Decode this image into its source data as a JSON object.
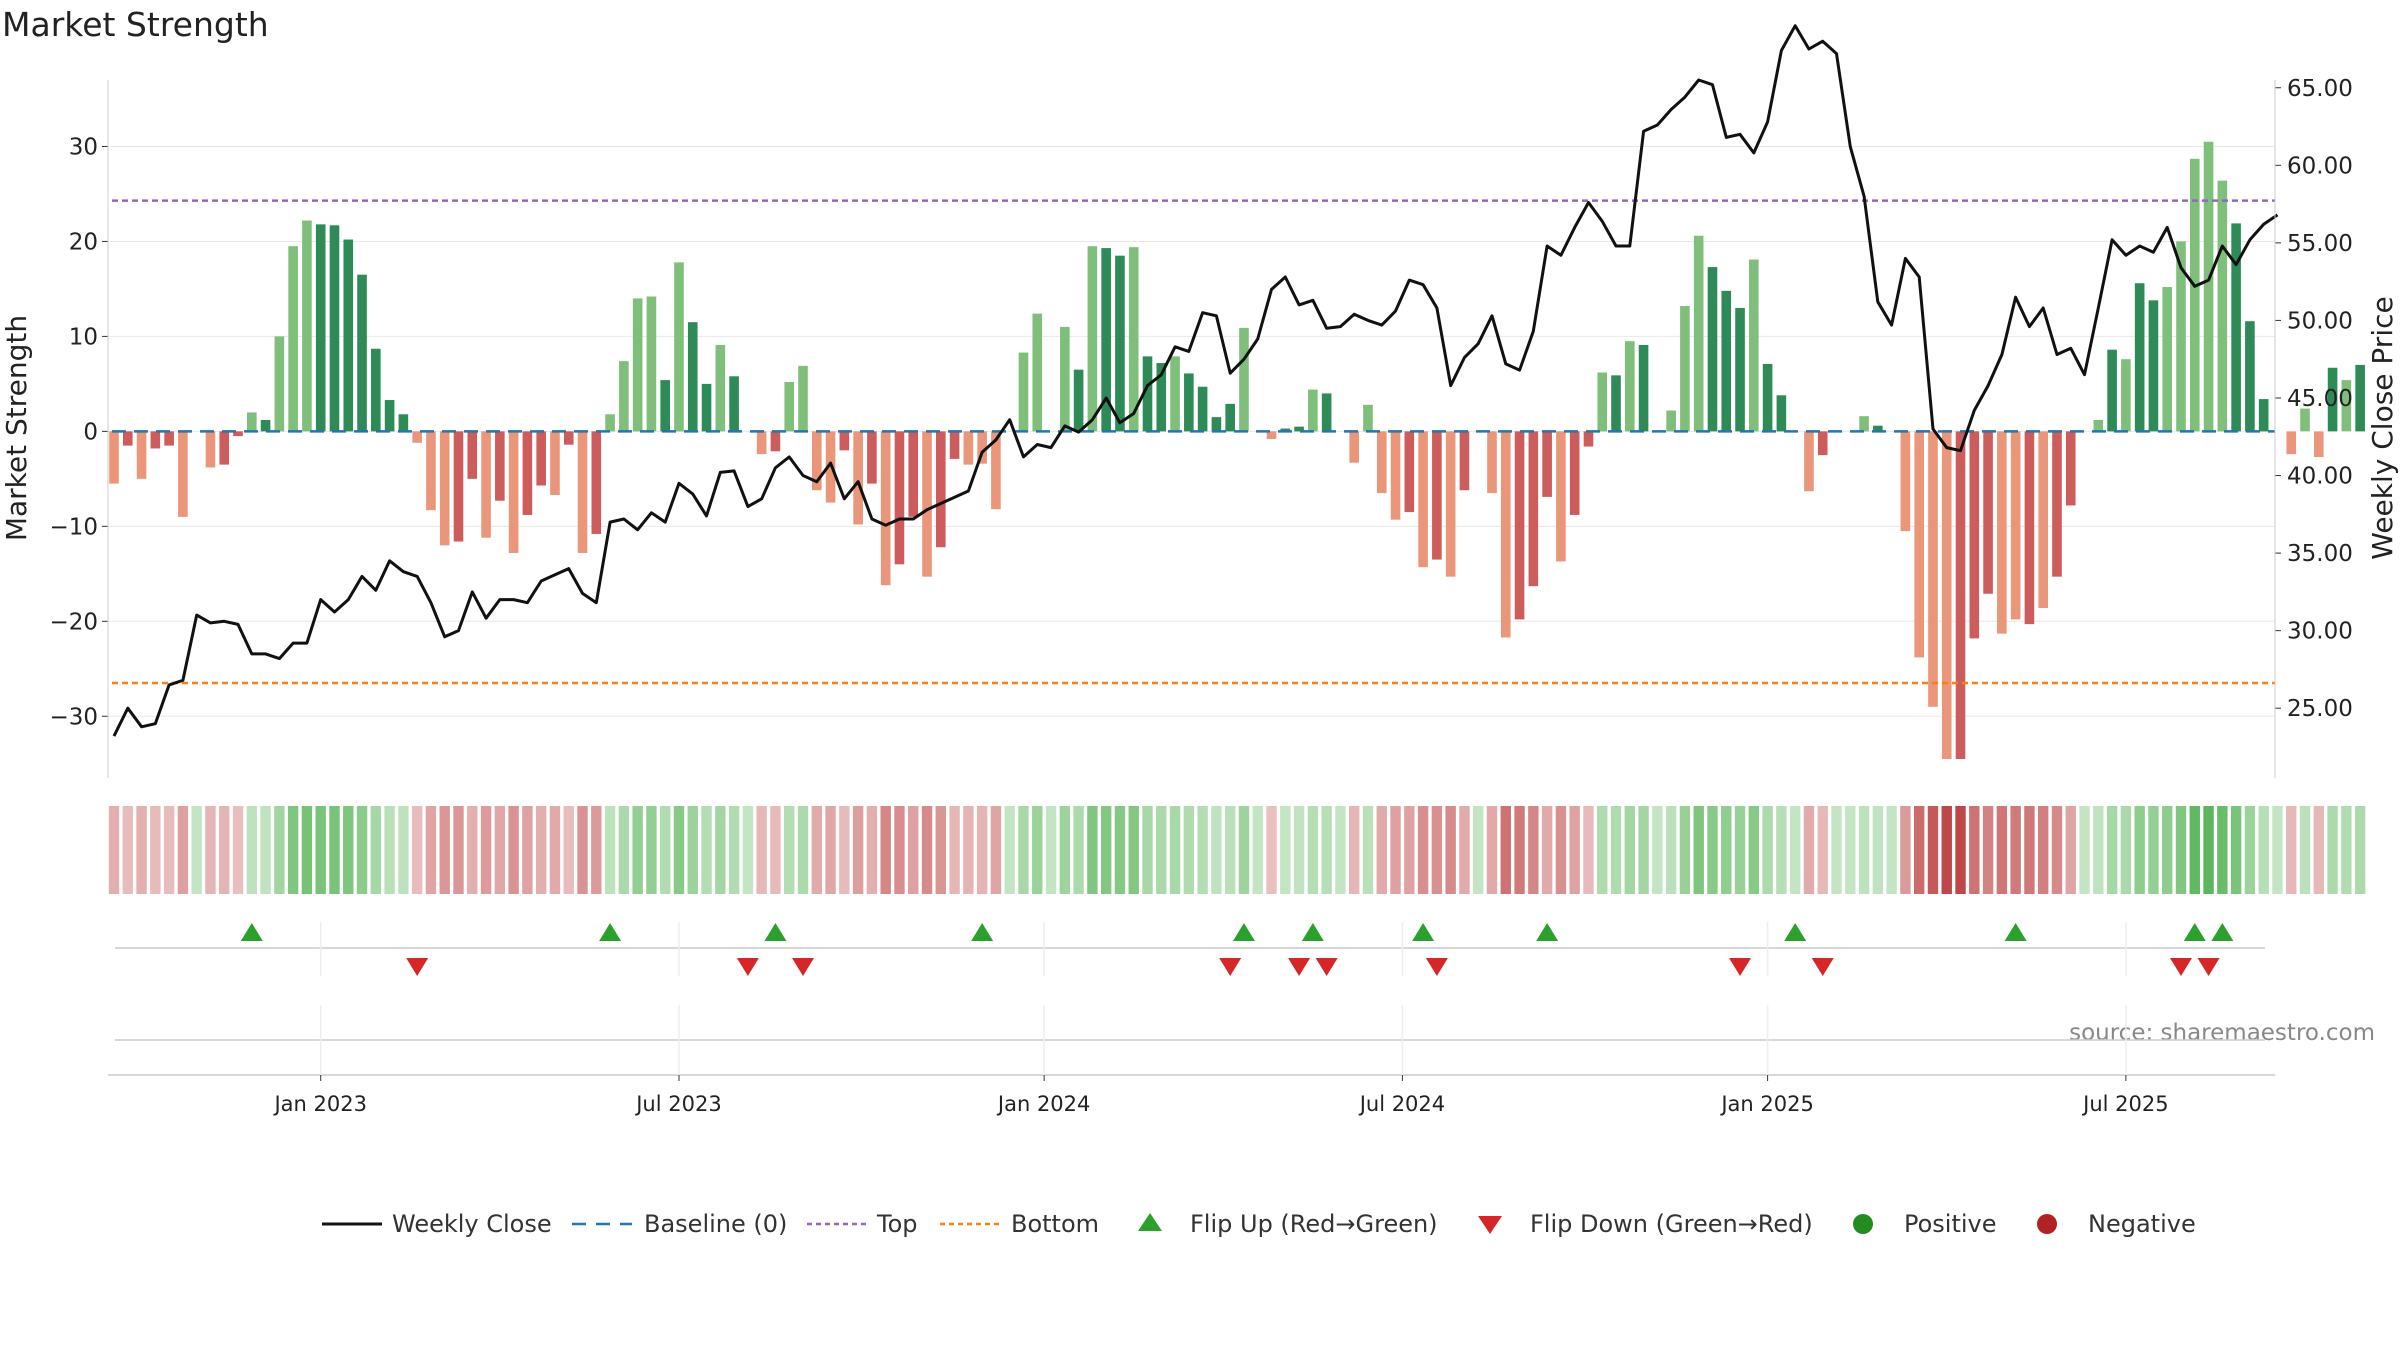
{
  "chart_data": {
    "type": "bar",
    "title": "Market Strength",
    "ylabel": "Market Strength",
    "y2label": "Weekly Close Price",
    "source": "source: sharemaestro.com",
    "ylim": [
      -36.5,
      37
    ],
    "y2lim": [
      20.5,
      65.5
    ],
    "yticks": [
      30,
      20,
      10,
      0,
      -10,
      -20,
      -30
    ],
    "ytick_labels": [
      "30",
      "20",
      "10",
      "0",
      "−10",
      "−20",
      "−30"
    ],
    "y2ticks": [
      65,
      60,
      55,
      50,
      45,
      40,
      35,
      30,
      25
    ],
    "y2tick_labels": [
      "65.00",
      "60.00",
      "55.00",
      "50.00",
      "45.00",
      "40.00",
      "35.00",
      "30.00",
      "25.00"
    ],
    "xlim": [
      "2022-10-24",
      "2025-09-22"
    ],
    "xticks": [
      {
        "label": "Jan 2023",
        "week": 15
      },
      {
        "label": "Jul 2023",
        "week": 41
      },
      {
        "label": "Jan 2024",
        "week": 67.5
      },
      {
        "label": "Jul 2024",
        "week": 93.5
      },
      {
        "label": "Jan 2025",
        "week": 120
      },
      {
        "label": "Jul 2025",
        "week": 146
      }
    ],
    "top_line": 24.3,
    "bottom_line": -26.5,
    "grid": true,
    "legend_position": "bottom",
    "colors": {
      "strong_green": "#2e8b57",
      "light_green": "#7fbf7b",
      "strong_red": "#cd5c5c",
      "light_red": "#e9967a",
      "close": "#111111",
      "baseline": "#1f77b4",
      "top": "#9467bd",
      "bottom": "#ff7f0e",
      "flip_up": "#2ca02c",
      "flip_down": "#d62728",
      "positive": "#228b22",
      "negative": "#b22222"
    },
    "strength": [
      -5.5,
      -1.5,
      -5,
      -1.8,
      -1.5,
      -9,
      0,
      -3.8,
      -3.5,
      -0.5,
      2,
      1.2,
      10,
      19.5,
      22.2,
      21.8,
      21.7,
      20.2,
      16.5,
      8.7,
      3.3,
      1.8,
      -1.2,
      -8.3,
      -12,
      -11.6,
      -5,
      -11.2,
      -7.3,
      -12.8,
      -8.8,
      -5.7,
      -6.7,
      -1.4,
      -12.8,
      -10.8,
      1.8,
      7.4,
      14,
      14.2,
      5.4,
      17.8,
      11.5,
      5,
      9.1,
      5.8,
      0,
      -2.4,
      -2.1,
      5.2,
      6.9,
      -6.2,
      -7.5,
      -2,
      -9.8,
      -5.5,
      -16.2,
      -14,
      -9,
      -15.3,
      -12.2,
      -2.9,
      -3.5,
      -3.4,
      -8.2,
      0,
      8.3,
      12.4,
      0,
      11,
      6.5,
      19.5,
      19.3,
      18.5,
      19.4,
      7.9,
      7.2,
      7.9,
      6.1,
      4.7,
      1.5,
      2.9,
      10.9,
      0,
      -0.8,
      0.3,
      0.5,
      4.4,
      4,
      0,
      -3.3,
      2.8,
      -6.5,
      -9.3,
      -8.5,
      -14.3,
      -13.5,
      -15.3,
      -6.2,
      0,
      -6.5,
      -21.7,
      -19.8,
      -16.3,
      -6.9,
      -13.7,
      -8.8,
      -1.6,
      6.2,
      5.9,
      9.5,
      9.1,
      0,
      2.2,
      13.2,
      20.6,
      17.3,
      14.8,
      13,
      18.1,
      7.1,
      3.8,
      0,
      -6.3,
      -2.5,
      0,
      0,
      1.6,
      0.6,
      0,
      -10.5,
      -23.8,
      -29,
      -34.5,
      -34.5,
      -21.8,
      -17.1,
      -21.3,
      -19.8,
      -20.3,
      -18.6,
      -15.3,
      -7.8,
      0,
      1.2,
      8.6,
      7.6,
      15.6,
      13.8,
      15.2,
      20,
      28.7,
      30.5,
      26.4,
      21.9,
      11.6,
      3.4,
      0,
      -2.4,
      2.4,
      -2.7,
      6.7,
      5.4,
      7
    ],
    "shade": [
      1,
      0,
      1,
      0,
      0,
      1,
      0,
      1,
      0,
      0,
      1,
      0,
      1,
      1,
      1,
      0,
      0,
      0,
      0,
      0,
      0,
      0,
      1,
      1,
      1,
      0,
      0,
      1,
      0,
      1,
      0,
      0,
      1,
      0,
      1,
      0,
      1,
      1,
      1,
      1,
      0,
      1,
      0,
      0,
      1,
      0,
      0,
      1,
      0,
      1,
      1,
      1,
      1,
      0,
      1,
      0,
      1,
      0,
      0,
      1,
      0,
      0,
      1,
      1,
      1,
      0,
      1,
      1,
      0,
      1,
      0,
      1,
      0,
      0,
      1,
      0,
      0,
      1,
      0,
      0,
      0,
      0,
      1,
      0,
      1,
      0,
      0,
      1,
      0,
      0,
      1,
      1,
      1,
      1,
      0,
      1,
      0,
      1,
      0,
      0,
      1,
      1,
      0,
      0,
      0,
      1,
      0,
      0,
      1,
      0,
      1,
      0,
      0,
      1,
      1,
      1,
      0,
      0,
      0,
      1,
      0,
      0,
      0,
      1,
      0,
      0,
      0,
      1,
      0,
      0,
      1,
      1,
      1,
      1,
      0,
      0,
      0,
      1,
      1,
      0,
      1,
      0,
      0,
      0,
      1,
      0,
      1,
      0,
      0,
      1,
      1,
      1,
      1,
      1,
      0,
      0,
      0,
      1,
      1,
      1,
      1,
      0,
      1
    ],
    "close": [
      23.2,
      25,
      23.8,
      24,
      26.5,
      26.8,
      31,
      30.5,
      30.6,
      30.4,
      28.5,
      28.5,
      28.2,
      29.2,
      29.2,
      32,
      31.2,
      32,
      33.5,
      32.6,
      34.5,
      33.8,
      33.5,
      31.8,
      29.6,
      30,
      32.5,
      30.8,
      32,
      32,
      31.8,
      33.2,
      33.6,
      34,
      32.4,
      31.8,
      37,
      37.2,
      36.5,
      37.6,
      37,
      39.5,
      38.8,
      37.4,
      40.2,
      40.3,
      38,
      38.5,
      40.5,
      41.2,
      40,
      39.6,
      40.8,
      38.5,
      39.6,
      37.2,
      36.8,
      37.2,
      37.2,
      37.8,
      38.2,
      38.6,
      39,
      41.5,
      42.3,
      43.6,
      41.2,
      42,
      41.8,
      43.2,
      42.8,
      43.6,
      45,
      43.4,
      44,
      45.8,
      46.5,
      48.3,
      48,
      50.5,
      50.3,
      46.6,
      47.5,
      48.8,
      52,
      52.8,
      51,
      51.3,
      49.5,
      49.6,
      50.4,
      50,
      49.7,
      50.6,
      52.6,
      52.3,
      50.8,
      45.8,
      47.6,
      48.5,
      50.3,
      47.2,
      46.8,
      49.3,
      54.8,
      54.2,
      56,
      57.6,
      56.4,
      54.8,
      54.8,
      62.2,
      62.6,
      63.6,
      64.4,
      65.5,
      65.2,
      61.8,
      62,
      60.8,
      62.8,
      67.4,
      69,
      67.5,
      68,
      67.2,
      61.2,
      58,
      51.2,
      49.7,
      54,
      52.8,
      43,
      41.8,
      41.6,
      44.2,
      45.8,
      47.8,
      51.5,
      49.6,
      50.8,
      47.8,
      48.2,
      46.5,
      50.8,
      55.2,
      54.2,
      54.8,
      54.4,
      56,
      53.4,
      52.2,
      52.6,
      54.8,
      53.6,
      55.2,
      56.2,
      56.8
    ],
    "flips_up": [
      10,
      36,
      48,
      63,
      82,
      87,
      95,
      104,
      122,
      138,
      151,
      153
    ],
    "flips_down": [
      22,
      46,
      50,
      81,
      86,
      88,
      96,
      118,
      124,
      150,
      152
    ],
    "legend": {
      "close": "Weekly Close",
      "baseline": "Baseline (0)",
      "top": "Top",
      "bottom": "Bottom",
      "flip_up": "Flip Up (Red→Green)",
      "flip_down": "Flip Down (Green→Red)",
      "positive": "Positive",
      "negative": "Negative"
    }
  }
}
